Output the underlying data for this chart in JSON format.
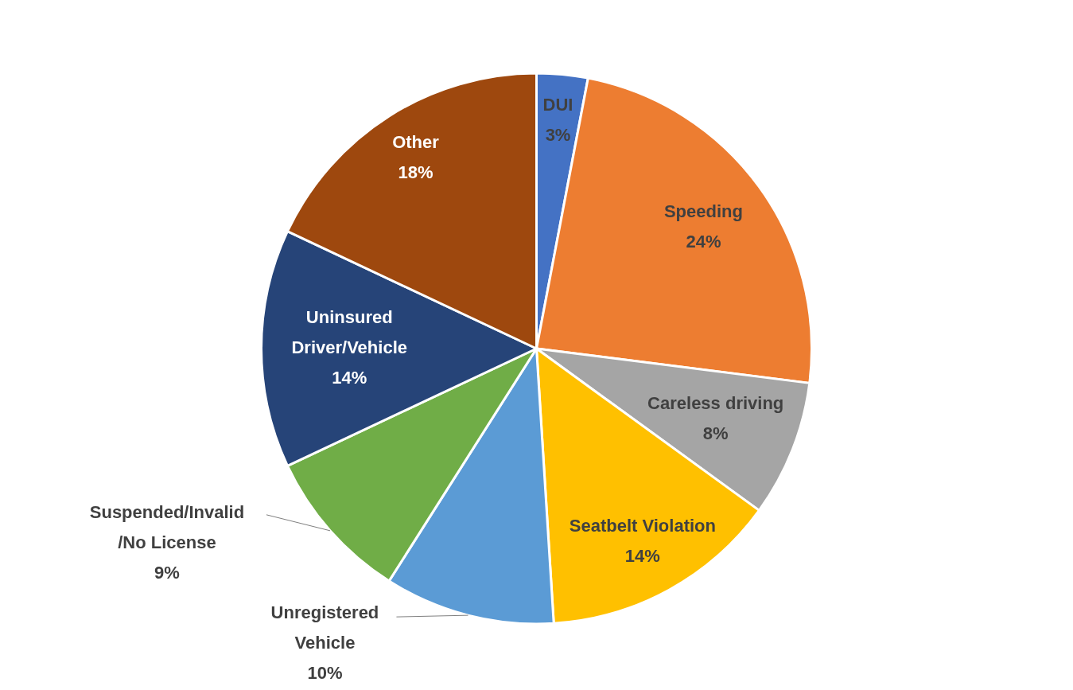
{
  "chart_data": {
    "type": "pie",
    "categories": [
      "DUI",
      "Speeding",
      "Careless driving",
      "Seatbelt Violation",
      "Unregistered\nVehicle",
      "Suspended/Invalid\n/No License",
      "Uninsured\nDriver/Vehicle",
      "Other"
    ],
    "values": [
      3,
      24,
      8,
      14,
      10,
      9,
      14,
      18
    ],
    "value_labels": [
      "3%",
      "24%",
      "8%",
      "14%",
      "10%",
      "9%",
      "14%",
      "18%"
    ],
    "colors": [
      "#4472c4",
      "#ed7d31",
      "#a5a5a5",
      "#ffc000",
      "#5b9bd5",
      "#70ad47",
      "#264478",
      "#9e480e"
    ],
    "legend": false
  }
}
